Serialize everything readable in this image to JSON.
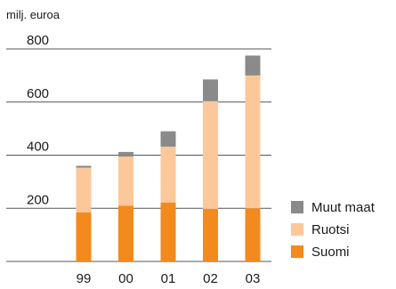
{
  "chart_data": {
    "type": "bar",
    "stacked": true,
    "title": "",
    "unit_label": "milj. euroa",
    "xlabel": "",
    "ylabel": "",
    "ylim": [
      0,
      800
    ],
    "yticks": [
      200,
      400,
      600,
      800
    ],
    "ytick_labels": [
      "200",
      "400",
      "600",
      "800"
    ],
    "grid": true,
    "legend_position": "right",
    "categories": [
      "99",
      "00",
      "01",
      "02",
      "03"
    ],
    "series": [
      {
        "name": "Suomi",
        "color": "#f28a1e",
        "values": [
          185,
          210,
          222,
          198,
          200
        ]
      },
      {
        "name": "Ruotsi",
        "color": "#fcc89a",
        "values": [
          168,
          185,
          210,
          405,
          500
        ]
      },
      {
        "name": "Muut maat",
        "color": "#8a8a8a",
        "values": [
          7,
          17,
          58,
          82,
          75
        ]
      }
    ],
    "legend_order": [
      "Muut maat",
      "Ruotsi",
      "Suomi"
    ]
  }
}
